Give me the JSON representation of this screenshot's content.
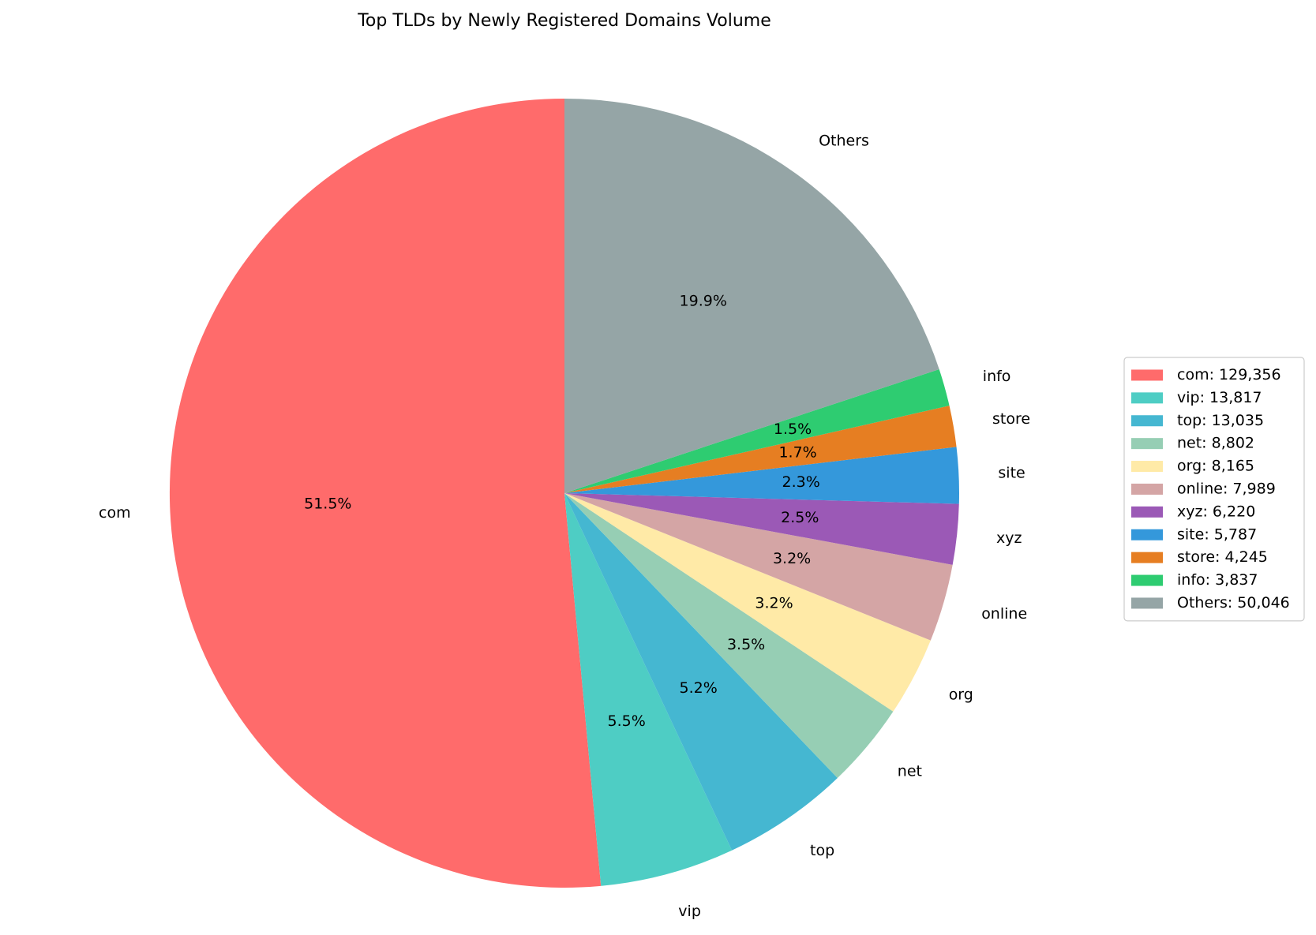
{
  "chart_data": {
    "type": "pie",
    "title": "Top TLDs by Newly Registered Domains Volume",
    "start_angle_deg": 90,
    "direction": "counterclockwise",
    "legend_position": "right",
    "slices": [
      {
        "label": "com",
        "value": 129356,
        "percent_label": "51.5%",
        "legend_label": "com: 129,356",
        "color": "#ff6b6b"
      },
      {
        "label": "vip",
        "value": 13817,
        "percent_label": "5.5%",
        "legend_label": "vip: 13,817",
        "color": "#4ecdc4"
      },
      {
        "label": "top",
        "value": 13035,
        "percent_label": "5.2%",
        "legend_label": "top: 13,035",
        "color": "#45b7d1"
      },
      {
        "label": "net",
        "value": 8802,
        "percent_label": "3.5%",
        "legend_label": "net: 8,802",
        "color": "#96ceb4"
      },
      {
        "label": "org",
        "value": 8165,
        "percent_label": "3.2%",
        "legend_label": "org: 8,165",
        "color": "#ffeaa7"
      },
      {
        "label": "online",
        "value": 7989,
        "percent_label": "3.2%",
        "legend_label": "online: 7,989",
        "color": "#d4a5a5"
      },
      {
        "label": "xyz",
        "value": 6220,
        "percent_label": "2.5%",
        "legend_label": "xyz: 6,220",
        "color": "#9b59b6"
      },
      {
        "label": "site",
        "value": 5787,
        "percent_label": "2.3%",
        "legend_label": "site: 5,787",
        "color": "#3498db"
      },
      {
        "label": "store",
        "value": 4245,
        "percent_label": "1.7%",
        "legend_label": "store: 4,245",
        "color": "#e67e22"
      },
      {
        "label": "info",
        "value": 3837,
        "percent_label": "1.5%",
        "legend_label": "info: 3,837",
        "color": "#2ecc71"
      },
      {
        "label": "Others",
        "value": 50046,
        "percent_label": "19.9%",
        "legend_label": "Others: 50,046",
        "color": "#95a5a6"
      }
    ]
  }
}
